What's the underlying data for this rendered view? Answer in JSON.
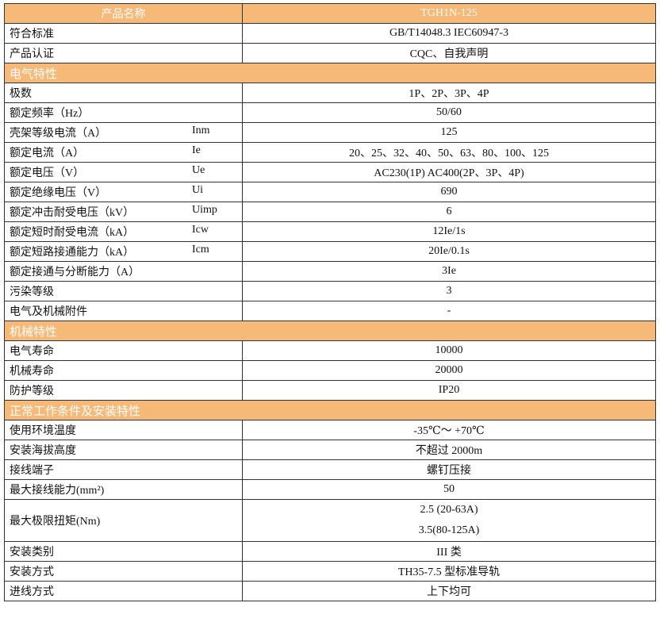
{
  "header": {
    "label": "产品名称",
    "value": "TGH1N-125"
  },
  "colors": {
    "section_bg": "#f6b978",
    "section_text": "#ffffff",
    "border": "#333333"
  },
  "rows_top": [
    {
      "label": "符合标准",
      "symbol": "",
      "value": "GB/T14048.3   IEC60947-3"
    },
    {
      "label": "产品认证",
      "symbol": "",
      "value": "CQC、自我声明"
    }
  ],
  "sections": [
    {
      "title": "电气特性",
      "rows": [
        {
          "label": "极数",
          "symbol": "",
          "value": "1P、2P、3P、4P"
        },
        {
          "label": "额定频率（Hz）",
          "symbol": "",
          "value": "50/60"
        },
        {
          "label": "壳架等级电流（A）",
          "symbol": "Inm",
          "value": "125"
        },
        {
          "label": "额定电流（A）",
          "symbol": "Ie",
          "value": "20、25、32、40、50、63、80、100、125"
        },
        {
          "label": "额定电压（V）",
          "symbol": "Ue",
          "value": "AC230(1P)   AC400(2P、3P、4P)"
        },
        {
          "label": "额定绝缘电压（V）",
          "symbol": "Ui",
          "value": "690"
        },
        {
          "label": "额定冲击耐受电压（kV）",
          "symbol": "Uimp",
          "value": "6"
        },
        {
          "label": "额定短时耐受电流（kA）",
          "symbol": "Icw",
          "value": "12Ie/1s"
        },
        {
          "label": "额定短路接通能力（kA）",
          "symbol": "Icm",
          "value": "20Ie/0.1s"
        },
        {
          "label": "额定接通与分断能力（A）",
          "symbol": "",
          "value": "3Ie"
        },
        {
          "label": "污染等级",
          "symbol": "",
          "value": "3"
        },
        {
          "label": "电气及机械附件",
          "symbol": "",
          "value": "-"
        }
      ]
    },
    {
      "title": "机械特性",
      "rows": [
        {
          "label": "电气寿命",
          "symbol": "",
          "value": "10000"
        },
        {
          "label": "机械寿命",
          "symbol": "",
          "value": "20000"
        },
        {
          "label": "防护等级",
          "symbol": "",
          "value": "IP20"
        }
      ]
    },
    {
      "title": "正常工作条件及安装特性",
      "rows": [
        {
          "label": "使用环境温度",
          "symbol": "",
          "value": "-35℃～ +70℃"
        },
        {
          "label": "安装海拔高度",
          "symbol": "",
          "value": "不超过 2000m"
        },
        {
          "label": "接线端子",
          "symbol": "",
          "value": "螺钉压接"
        },
        {
          "label": "最大接线能力(mm²)",
          "symbol": "",
          "value": "50"
        }
      ]
    }
  ],
  "torque": {
    "label": "最大极限扭矩(Nm)",
    "values": [
      "2.5 (20-63A)",
      "3.5(80-125A)"
    ]
  },
  "rows_bottom": [
    {
      "label": "安装类别",
      "value": "III 类"
    },
    {
      "label": "安装方式",
      "value": "TH35-7.5 型标准导轨"
    },
    {
      "label": "进线方式",
      "value": "上下均可"
    }
  ]
}
